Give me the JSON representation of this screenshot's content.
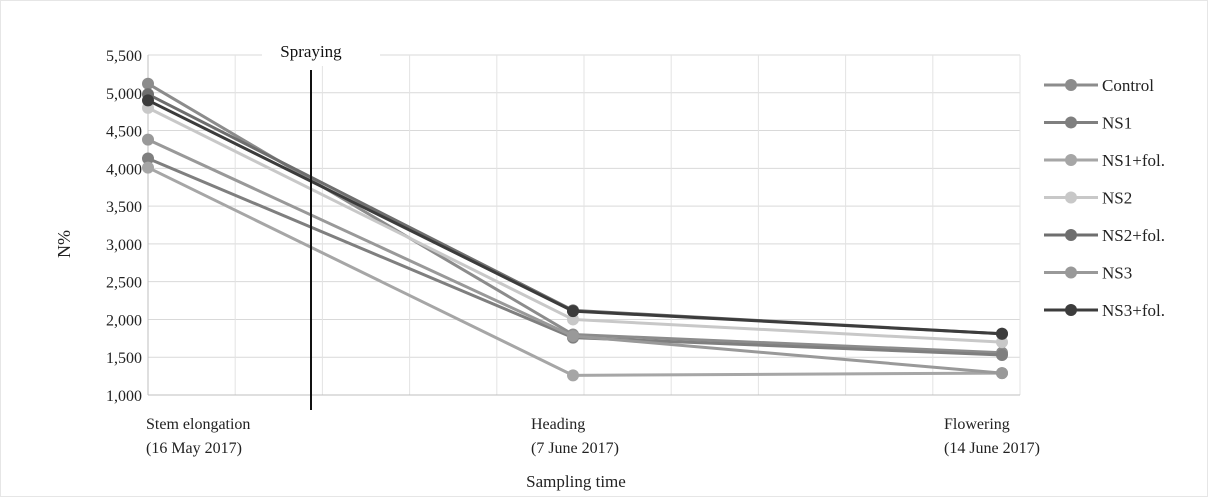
{
  "chart_data": {
    "type": "line",
    "ylabel": "N%",
    "xlabel": "Sampling time",
    "annotation": "Spraying",
    "ylim": [
      1000,
      5500
    ],
    "yticks": [
      "5,500",
      "5,000",
      "4,500",
      "4,000",
      "3,500",
      "3,000",
      "2,500",
      "2,000",
      "1,500",
      "1,000"
    ],
    "ytick_values": [
      5500,
      5000,
      4500,
      4000,
      3500,
      3000,
      2500,
      2000,
      1500,
      1000
    ],
    "categories": [
      [
        "Stem elongation",
        "(16 May 2017)"
      ],
      [
        "Heading",
        "(7 June 2017)"
      ],
      [
        "Flowering",
        "(14 June 2017)"
      ]
    ],
    "grid": true,
    "legend_position": "right",
    "series": [
      {
        "name": "Control",
        "color": "#8c8c8c",
        "values": [
          5120,
          1800,
          1560
        ]
      },
      {
        "name": "NS1",
        "color": "#7f7f7f",
        "values": [
          4130,
          1760,
          1530
        ]
      },
      {
        "name": "NS1+fol.",
        "color": "#a6a6a6",
        "values": [
          4010,
          1260,
          1290
        ]
      },
      {
        "name": "NS2",
        "color": "#c8c8c8",
        "values": [
          4800,
          2000,
          1700
        ]
      },
      {
        "name": "NS2+fol.",
        "color": "#6e6e6e",
        "values": [
          4980,
          2120,
          1810
        ]
      },
      {
        "name": "NS3",
        "color": "#999999",
        "values": [
          4380,
          1780,
          1290
        ]
      },
      {
        "name": "NS3+fol.",
        "color": "#3c3c3c",
        "values": [
          4900,
          2110,
          1810
        ]
      }
    ]
  }
}
